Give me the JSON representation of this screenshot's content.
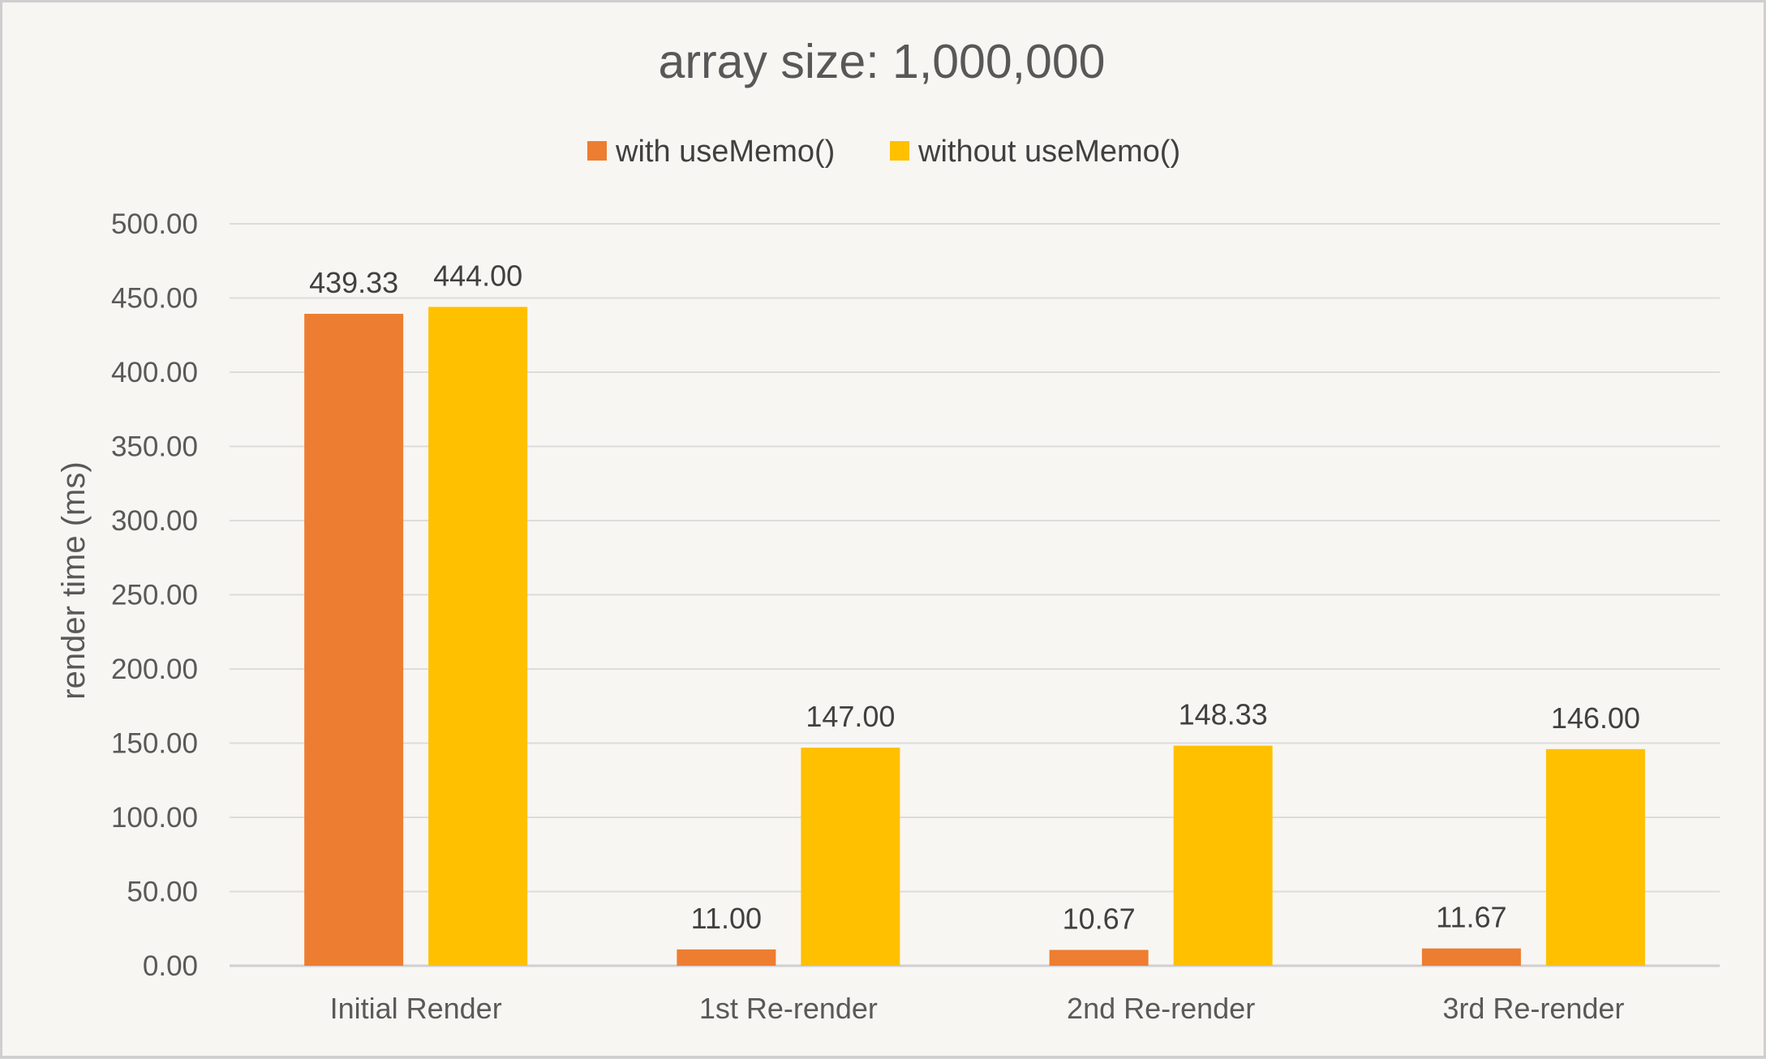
{
  "chart_data": {
    "type": "bar",
    "title": "array size: 1,000,000",
    "xlabel": "",
    "ylabel": "render time (ms)",
    "ylim": [
      0,
      500
    ],
    "y_tick_step": 50,
    "y_tick_labels": [
      "0.00",
      "50.00",
      "100.00",
      "150.00",
      "200.00",
      "250.00",
      "300.00",
      "350.00",
      "400.00",
      "450.00",
      "500.00"
    ],
    "grid": true,
    "legend_position": "top",
    "categories": [
      "Initial Render",
      "1st Re-render",
      "2nd Re-render",
      "3rd Re-render"
    ],
    "series": [
      {
        "name": "with useMemo()",
        "color": "#ed7d31",
        "values": [
          439.33,
          11.0,
          10.67,
          11.67
        ],
        "labels": [
          "439.33",
          "11.00",
          "10.67",
          "11.67"
        ]
      },
      {
        "name": "without useMemo()",
        "color": "#ffc000",
        "values": [
          444.0,
          147.0,
          148.33,
          146.0
        ],
        "labels": [
          "444.00",
          "147.00",
          "148.33",
          "146.00"
        ]
      }
    ]
  }
}
